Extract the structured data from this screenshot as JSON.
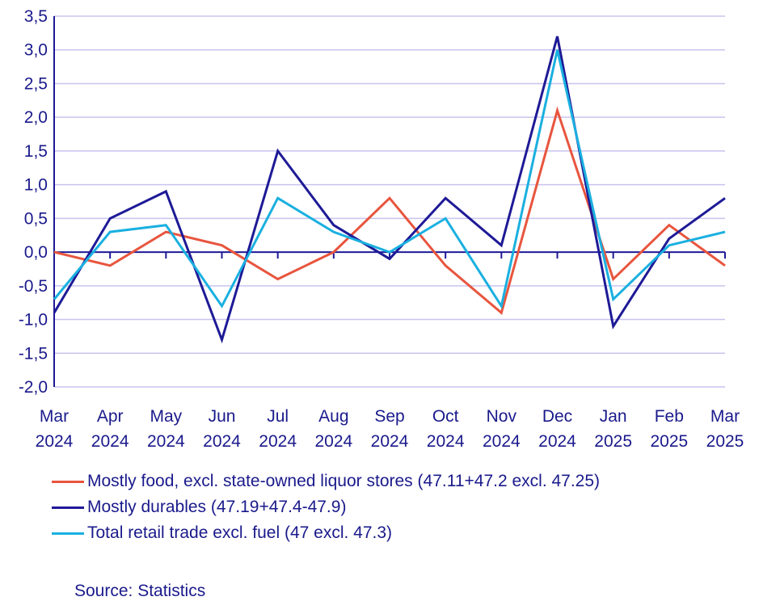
{
  "chart_data": {
    "type": "line",
    "categories": [
      [
        "Mar",
        "2024"
      ],
      [
        "Apr",
        "2024"
      ],
      [
        "May",
        "2024"
      ],
      [
        "Jun",
        "2024"
      ],
      [
        "Jul",
        "2024"
      ],
      [
        "Aug",
        "2024"
      ],
      [
        "Sep",
        "2024"
      ],
      [
        "Oct",
        "2024"
      ],
      [
        "Nov",
        "2024"
      ],
      [
        "Dec",
        "2024"
      ],
      [
        "Jan",
        "2025"
      ],
      [
        "Feb",
        "2025"
      ],
      [
        "Mar",
        "2025"
      ]
    ],
    "yticks": [
      "3,5",
      "3,0",
      "2,5",
      "2,0",
      "1,5",
      "1,0",
      "0,5",
      "0,0",
      "-0,5",
      "-1,0",
      "-1,5",
      "-2,0"
    ],
    "ylim": [
      -2.0,
      3.5
    ],
    "grid": true,
    "legend_position": "bottom",
    "series": [
      {
        "name": "Mostly food, excl. state-owned liquor stores (47.11+47.2 excl. 47.25)",
        "color": "#e8553e",
        "values": [
          0.0,
          -0.2,
          0.3,
          0.1,
          -0.4,
          0.0,
          0.8,
          -0.2,
          -0.9,
          2.1,
          -0.4,
          0.4,
          -0.2
        ]
      },
      {
        "name": "Mostly durables (47.19+47.4-47.9)",
        "color": "#1e1a96",
        "values": [
          -0.9,
          0.5,
          0.9,
          -1.3,
          1.5,
          0.4,
          -0.1,
          0.8,
          0.1,
          3.2,
          -1.1,
          0.2,
          0.8
        ]
      },
      {
        "name": "Total retail trade excl. fuel (47 excl. 47.3)",
        "color": "#1ab0e0",
        "values": [
          -0.7,
          0.3,
          0.4,
          -0.8,
          0.8,
          0.3,
          0.0,
          0.5,
          -0.8,
          3.0,
          -0.7,
          0.1,
          0.3
        ]
      }
    ],
    "colors": {
      "grid": "#c8c4ee",
      "axis": "#1e1a96",
      "text": "#1a1a8c"
    }
  },
  "source": "Source: Statistics"
}
